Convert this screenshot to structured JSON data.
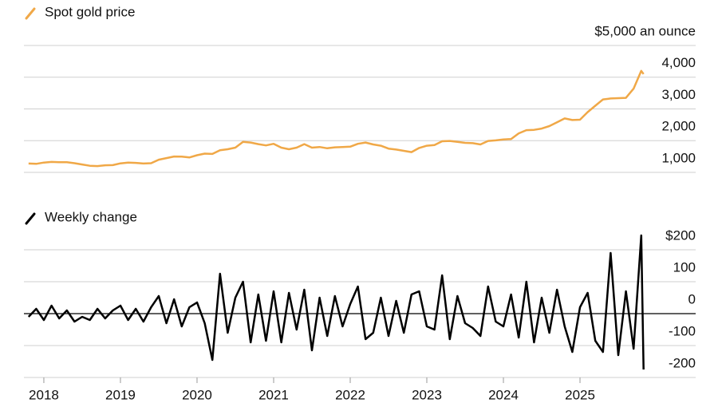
{
  "chart_data": [
    {
      "type": "line",
      "title": "Spot gold price",
      "color": "#f0a847",
      "x": [
        2017.8,
        2017.9,
        2018.0,
        2018.1,
        2018.2,
        2018.3,
        2018.4,
        2018.5,
        2018.6,
        2018.7,
        2018.8,
        2018.9,
        2019.0,
        2019.1,
        2019.2,
        2019.3,
        2019.4,
        2019.5,
        2019.6,
        2019.7,
        2019.8,
        2019.9,
        2020.0,
        2020.1,
        2020.2,
        2020.3,
        2020.4,
        2020.5,
        2020.6,
        2020.7,
        2020.8,
        2020.9,
        2021.0,
        2021.1,
        2021.2,
        2021.3,
        2021.4,
        2021.5,
        2021.6,
        2021.7,
        2021.8,
        2021.9,
        2022.0,
        2022.1,
        2022.2,
        2022.3,
        2022.4,
        2022.5,
        2022.6,
        2022.7,
        2022.8,
        2022.9,
        2023.0,
        2023.1,
        2023.2,
        2023.3,
        2023.4,
        2023.5,
        2023.6,
        2023.7,
        2023.8,
        2023.9,
        2024.0,
        2024.1,
        2024.2,
        2024.3,
        2024.4,
        2024.5,
        2024.6,
        2024.7,
        2024.8,
        2024.9,
        2025.0,
        2025.1,
        2025.2,
        2025.3,
        2025.4,
        2025.5,
        2025.6,
        2025.7,
        2025.8,
        2025.83
      ],
      "values": [
        1280,
        1270,
        1310,
        1330,
        1320,
        1320,
        1290,
        1250,
        1210,
        1200,
        1225,
        1230,
        1285,
        1310,
        1300,
        1280,
        1290,
        1400,
        1450,
        1500,
        1495,
        1470,
        1540,
        1590,
        1580,
        1700,
        1730,
        1780,
        1960,
        1940,
        1890,
        1850,
        1900,
        1780,
        1730,
        1780,
        1890,
        1780,
        1800,
        1760,
        1790,
        1800,
        1810,
        1900,
        1940,
        1880,
        1840,
        1750,
        1720,
        1680,
        1640,
        1770,
        1840,
        1860,
        1980,
        1990,
        1960,
        1930,
        1920,
        1880,
        1990,
        2010,
        2040,
        2050,
        2230,
        2330,
        2340,
        2380,
        2460,
        2580,
        2700,
        2650,
        2660,
        2900,
        3100,
        3300,
        3330,
        3340,
        3350,
        3640,
        4200,
        4100
      ],
      "xlim": [
        2017.74,
        2026.51
      ],
      "ylim": [
        1000,
        5000
      ],
      "yticks": [
        {
          "value": 1000,
          "label": "1,000"
        },
        {
          "value": 2000,
          "label": "2,000"
        },
        {
          "value": 3000,
          "label": "3,000"
        },
        {
          "value": 4000,
          "label": "4,000"
        },
        {
          "value": 5000,
          "label": "$5,000 an ounce"
        }
      ],
      "grid": true
    },
    {
      "type": "line",
      "title": "Weekly change",
      "color": "#000000",
      "x": [
        2017.8,
        2017.9,
        2018.0,
        2018.1,
        2018.2,
        2018.3,
        2018.4,
        2018.5,
        2018.6,
        2018.7,
        2018.8,
        2018.9,
        2019.0,
        2019.1,
        2019.2,
        2019.3,
        2019.4,
        2019.5,
        2019.6,
        2019.7,
        2019.8,
        2019.9,
        2020.0,
        2020.1,
        2020.2,
        2020.3,
        2020.4,
        2020.5,
        2020.6,
        2020.7,
        2020.8,
        2020.9,
        2021.0,
        2021.1,
        2021.2,
        2021.3,
        2021.4,
        2021.5,
        2021.6,
        2021.7,
        2021.8,
        2021.9,
        2022.0,
        2022.1,
        2022.2,
        2022.3,
        2022.4,
        2022.5,
        2022.6,
        2022.7,
        2022.8,
        2022.9,
        2023.0,
        2023.1,
        2023.2,
        2023.3,
        2023.4,
        2023.5,
        2023.6,
        2023.7,
        2023.8,
        2023.9,
        2024.0,
        2024.1,
        2024.2,
        2024.3,
        2024.4,
        2024.5,
        2024.6,
        2024.7,
        2024.8,
        2024.9,
        2025.0,
        2025.1,
        2025.2,
        2025.3,
        2025.4,
        2025.5,
        2025.6,
        2025.7,
        2025.8,
        2025.83
      ],
      "values": [
        -10,
        15,
        -20,
        25,
        -15,
        10,
        -25,
        -10,
        -20,
        15,
        -15,
        10,
        25,
        -20,
        15,
        -25,
        20,
        55,
        -30,
        45,
        -40,
        20,
        35,
        -30,
        -145,
        125,
        -60,
        50,
        100,
        -90,
        60,
        -85,
        70,
        -90,
        65,
        -50,
        75,
        -115,
        50,
        -70,
        55,
        -40,
        30,
        85,
        -80,
        -60,
        50,
        -70,
        40,
        -60,
        60,
        70,
        -40,
        -50,
        120,
        -80,
        55,
        -30,
        -45,
        -70,
        85,
        -25,
        -40,
        60,
        -75,
        100,
        -90,
        50,
        -60,
        75,
        -40,
        -120,
        20,
        65,
        -85,
        -120,
        190,
        -130,
        70,
        -110,
        245,
        -175
      ],
      "xlim": [
        2017.74,
        2026.51
      ],
      "ylim": [
        -200,
        200
      ],
      "xticks": [
        2018,
        2019,
        2020,
        2021,
        2022,
        2023,
        2024,
        2025
      ],
      "yticks": [
        -200,
        -100,
        0,
        100,
        {
          "value": 200,
          "label": "$200"
        }
      ],
      "grid": true
    }
  ]
}
